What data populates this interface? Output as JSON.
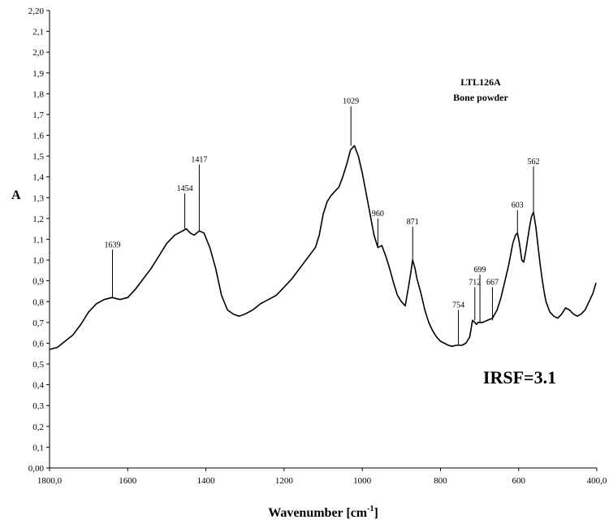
{
  "chart_data": {
    "type": "line",
    "title": "",
    "xlabel": "Wavenumber [cm",
    "xlabel_superscript": "-1",
    "xlabel_suffix": "]",
    "ylabel": "A",
    "xlim": [
      1800,
      400
    ],
    "ylim": [
      0,
      2.2
    ],
    "x_tick_labels": [
      "1800,0",
      "1600",
      "1400",
      "1200",
      "1000",
      "800",
      "600",
      "400,0"
    ],
    "x_tick_values": [
      1800,
      1600,
      1400,
      1200,
      1000,
      800,
      600,
      400
    ],
    "y_tick_labels": [
      "0,00",
      "0,1",
      "0,2",
      "0,3",
      "0,4",
      "0,5",
      "0,6",
      "0,7",
      "0,8",
      "0,9",
      "1,0",
      "1,1",
      "1,2",
      "1,3",
      "1,4",
      "1,5",
      "1,6",
      "1,7",
      "1,8",
      "1,9",
      "2,0",
      "2,1",
      "2,20"
    ],
    "y_tick_values": [
      0,
      0.1,
      0.2,
      0.3,
      0.4,
      0.5,
      0.6,
      0.7,
      0.8,
      0.9,
      1.0,
      1.1,
      1.2,
      1.3,
      1.4,
      1.5,
      1.6,
      1.7,
      1.8,
      1.9,
      2.0,
      2.1,
      2.2
    ],
    "grid": false,
    "sample_label": [
      "LTL126A",
      "Bone powder"
    ],
    "annotation": "IRSF=3.1",
    "peak_labels": [
      {
        "label": "1639",
        "x": 1639,
        "y": 0.82,
        "label_y": 1.05
      },
      {
        "label": "1454",
        "x": 1454,
        "y": 1.15,
        "label_y": 1.32
      },
      {
        "label": "1417",
        "x": 1417,
        "y": 1.14,
        "label_y": 1.46
      },
      {
        "label": "1029",
        "x": 1029,
        "y": 1.55,
        "label_y": 1.74
      },
      {
        "label": "960",
        "x": 960,
        "y": 1.07,
        "label_y": 1.2
      },
      {
        "label": "871",
        "x": 871,
        "y": 1.0,
        "label_y": 1.16
      },
      {
        "label": "754",
        "x": 754,
        "y": 0.59,
        "label_y": 0.76
      },
      {
        "label": "712",
        "x": 712,
        "y": 0.71,
        "label_y": 0.87
      },
      {
        "label": "699",
        "x": 699,
        "y": 0.7,
        "label_y": 0.93
      },
      {
        "label": "667",
        "x": 667,
        "y": 0.71,
        "label_y": 0.87
      },
      {
        "label": "603",
        "x": 603,
        "y": 1.13,
        "label_y": 1.24
      },
      {
        "label": "562",
        "x": 562,
        "y": 1.23,
        "label_y": 1.45
      }
    ],
    "series": [
      {
        "x": [
          1800,
          1780,
          1760,
          1740,
          1720,
          1700,
          1680,
          1660,
          1640,
          1620,
          1600,
          1580,
          1560,
          1540,
          1520,
          1500,
          1480,
          1460,
          1450,
          1440,
          1430,
          1417,
          1405,
          1390,
          1375,
          1360,
          1345,
          1330,
          1315,
          1300,
          1280,
          1260,
          1240,
          1220,
          1200,
          1180,
          1160,
          1140,
          1120,
          1110,
          1100,
          1090,
          1080,
          1070,
          1060,
          1050,
          1040,
          1030,
          1020,
          1010,
          1000,
          990,
          980,
          970,
          960,
          950,
          940,
          930,
          920,
          910,
          900,
          890,
          880,
          875,
          871,
          865,
          860,
          850,
          840,
          830,
          820,
          810,
          800,
          790,
          780,
          770,
          760,
          754,
          745,
          735,
          725,
          718,
          712,
          708,
          704,
          699,
          692,
          680,
          667,
          655,
          645,
          635,
          625,
          615,
          608,
          603,
          598,
          592,
          587,
          582,
          577,
          572,
          567,
          562,
          556,
          550,
          545,
          540,
          535,
          530,
          520,
          510,
          500,
          490,
          480,
          470,
          460,
          450,
          440,
          430,
          420,
          410,
          402
        ],
        "y": [
          0.57,
          0.58,
          0.61,
          0.64,
          0.69,
          0.75,
          0.79,
          0.81,
          0.82,
          0.81,
          0.82,
          0.86,
          0.91,
          0.96,
          1.02,
          1.08,
          1.12,
          1.14,
          1.15,
          1.13,
          1.12,
          1.14,
          1.13,
          1.06,
          0.96,
          0.83,
          0.76,
          0.74,
          0.73,
          0.74,
          0.76,
          0.79,
          0.81,
          0.83,
          0.87,
          0.91,
          0.96,
          1.01,
          1.06,
          1.12,
          1.22,
          1.28,
          1.31,
          1.33,
          1.35,
          1.4,
          1.46,
          1.53,
          1.55,
          1.5,
          1.42,
          1.32,
          1.22,
          1.12,
          1.06,
          1.07,
          1.02,
          0.96,
          0.89,
          0.83,
          0.8,
          0.78,
          0.89,
          0.95,
          1.0,
          0.96,
          0.91,
          0.84,
          0.76,
          0.7,
          0.66,
          0.63,
          0.61,
          0.6,
          0.59,
          0.585,
          0.59,
          0.59,
          0.59,
          0.6,
          0.63,
          0.71,
          0.7,
          0.69,
          0.7,
          0.7,
          0.7,
          0.71,
          0.72,
          0.76,
          0.82,
          0.9,
          0.98,
          1.08,
          1.12,
          1.13,
          1.08,
          1.0,
          0.99,
          1.04,
          1.1,
          1.16,
          1.21,
          1.23,
          1.16,
          1.06,
          0.98,
          0.91,
          0.85,
          0.8,
          0.75,
          0.73,
          0.72,
          0.74,
          0.77,
          0.76,
          0.74,
          0.73,
          0.74,
          0.76,
          0.8,
          0.84,
          0.89
        ]
      }
    ]
  }
}
